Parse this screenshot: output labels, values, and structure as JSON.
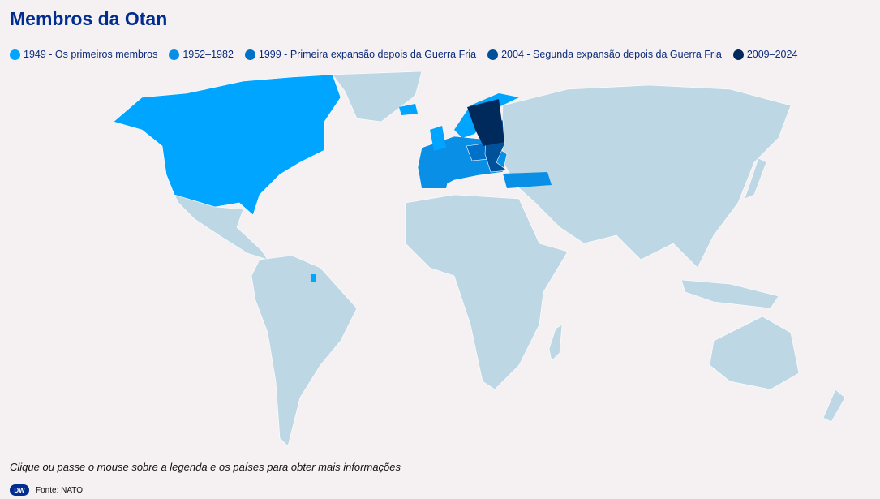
{
  "title": "Membros da Otan",
  "legend": [
    {
      "label": "1949 - Os primeiros membros",
      "color": "#00a5ff"
    },
    {
      "label": "1952–1982",
      "color": "#0a8fe6"
    },
    {
      "label": "1999 - Primeira expansão depois da Guerra Fria",
      "color": "#0070c8"
    },
    {
      "label": "2004 - Segunda expansão depois da Guerra Fria",
      "color": "#00509a"
    },
    {
      "label": "2009–2024",
      "color": "#002a5c"
    }
  ],
  "non_member_color": "#bdd8e4",
  "hint": "Clique ou passe o mouse sobre a legenda e os países para obter mais informações",
  "logo": "DW",
  "source": "Fonte: NATO"
}
